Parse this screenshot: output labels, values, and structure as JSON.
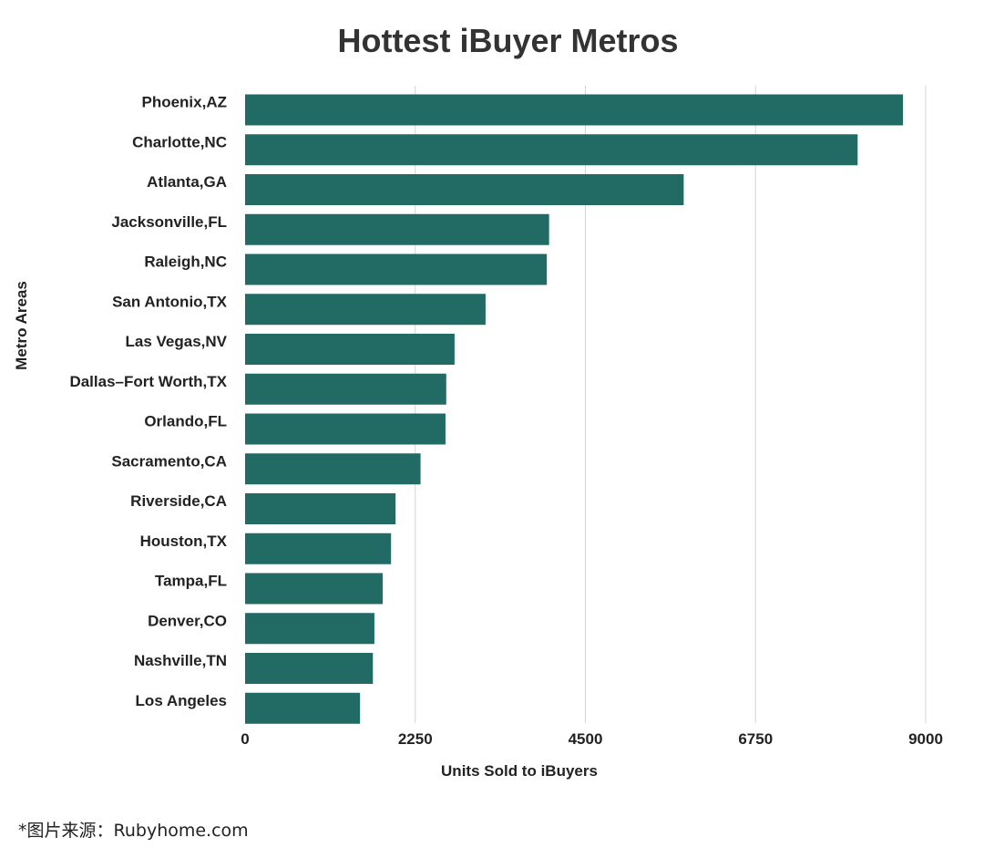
{
  "colors": {
    "bar": "#226B65",
    "grid": "#D4D4D4",
    "text": "#222222",
    "title": "#333333"
  },
  "footer": {
    "source": "*图片来源：Rubyhome.com"
  },
  "chart_data": {
    "type": "bar",
    "orientation": "horizontal",
    "title": "Hottest iBuyer Metros",
    "xlabel": "Units Sold to iBuyers",
    "ylabel": "Metro Areas",
    "xlim": [
      0,
      9000
    ],
    "xticks": [
      0,
      2250,
      4500,
      6750,
      9000
    ],
    "grid": "vertical",
    "legend": "none",
    "categories": [
      "Phoenix,AZ",
      "Charlotte,NC",
      "Atlanta,GA",
      "Jacksonville,FL",
      "Raleigh,NC",
      "San Antonio,TX",
      "Las Vegas,NV",
      "Dallas–Fort Worth,TX",
      "Orlando,FL",
      "Sacramento,CA",
      "Riverside,CA",
      "Houston,TX",
      "Tampa,FL",
      "Denver,CO",
      "Nashville,TN",
      "Los Angeles"
    ],
    "values": [
      8700,
      8100,
      5800,
      4020,
      3990,
      3180,
      2770,
      2660,
      2650,
      2320,
      1990,
      1930,
      1820,
      1710,
      1690,
      1520
    ]
  }
}
